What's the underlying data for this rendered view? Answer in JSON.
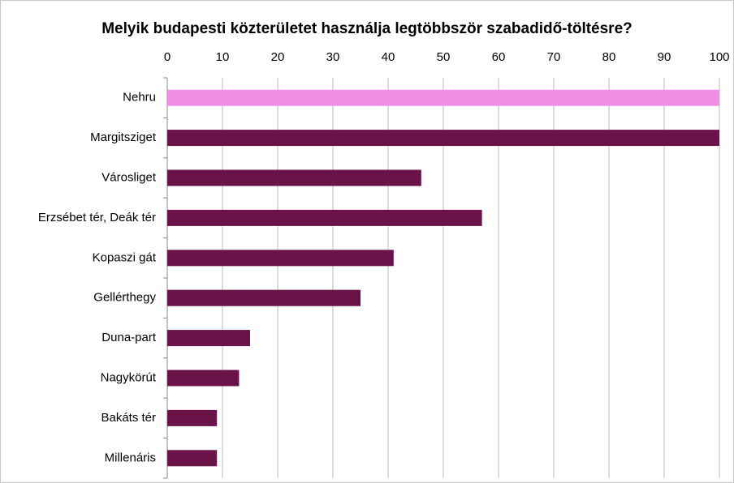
{
  "chart_data": {
    "type": "bar",
    "orientation": "horizontal",
    "title": "Melyik budapesti közterületet használja legtöbbször szabadidő-töltésre?",
    "categories": [
      "Nehru",
      "Margitsziget",
      "Városliget",
      "Erzsébet tér, Deák tér",
      "Kopaszi gát",
      "Gellérthegy",
      "Duna-part",
      "Nagykörút",
      "Bakáts tér",
      "Millenáris"
    ],
    "values": [
      100,
      100,
      46,
      57,
      41,
      35,
      15,
      13,
      9,
      9
    ],
    "colors": [
      "#f08ee6",
      "#6b1248",
      "#6b1248",
      "#6b1248",
      "#6b1248",
      "#6b1248",
      "#6b1248",
      "#6b1248",
      "#6b1248",
      "#6b1248"
    ],
    "xlim": [
      0,
      100
    ],
    "xticks": [
      0,
      10,
      20,
      30,
      40,
      50,
      60,
      70,
      80,
      90,
      100
    ],
    "grid": true
  }
}
